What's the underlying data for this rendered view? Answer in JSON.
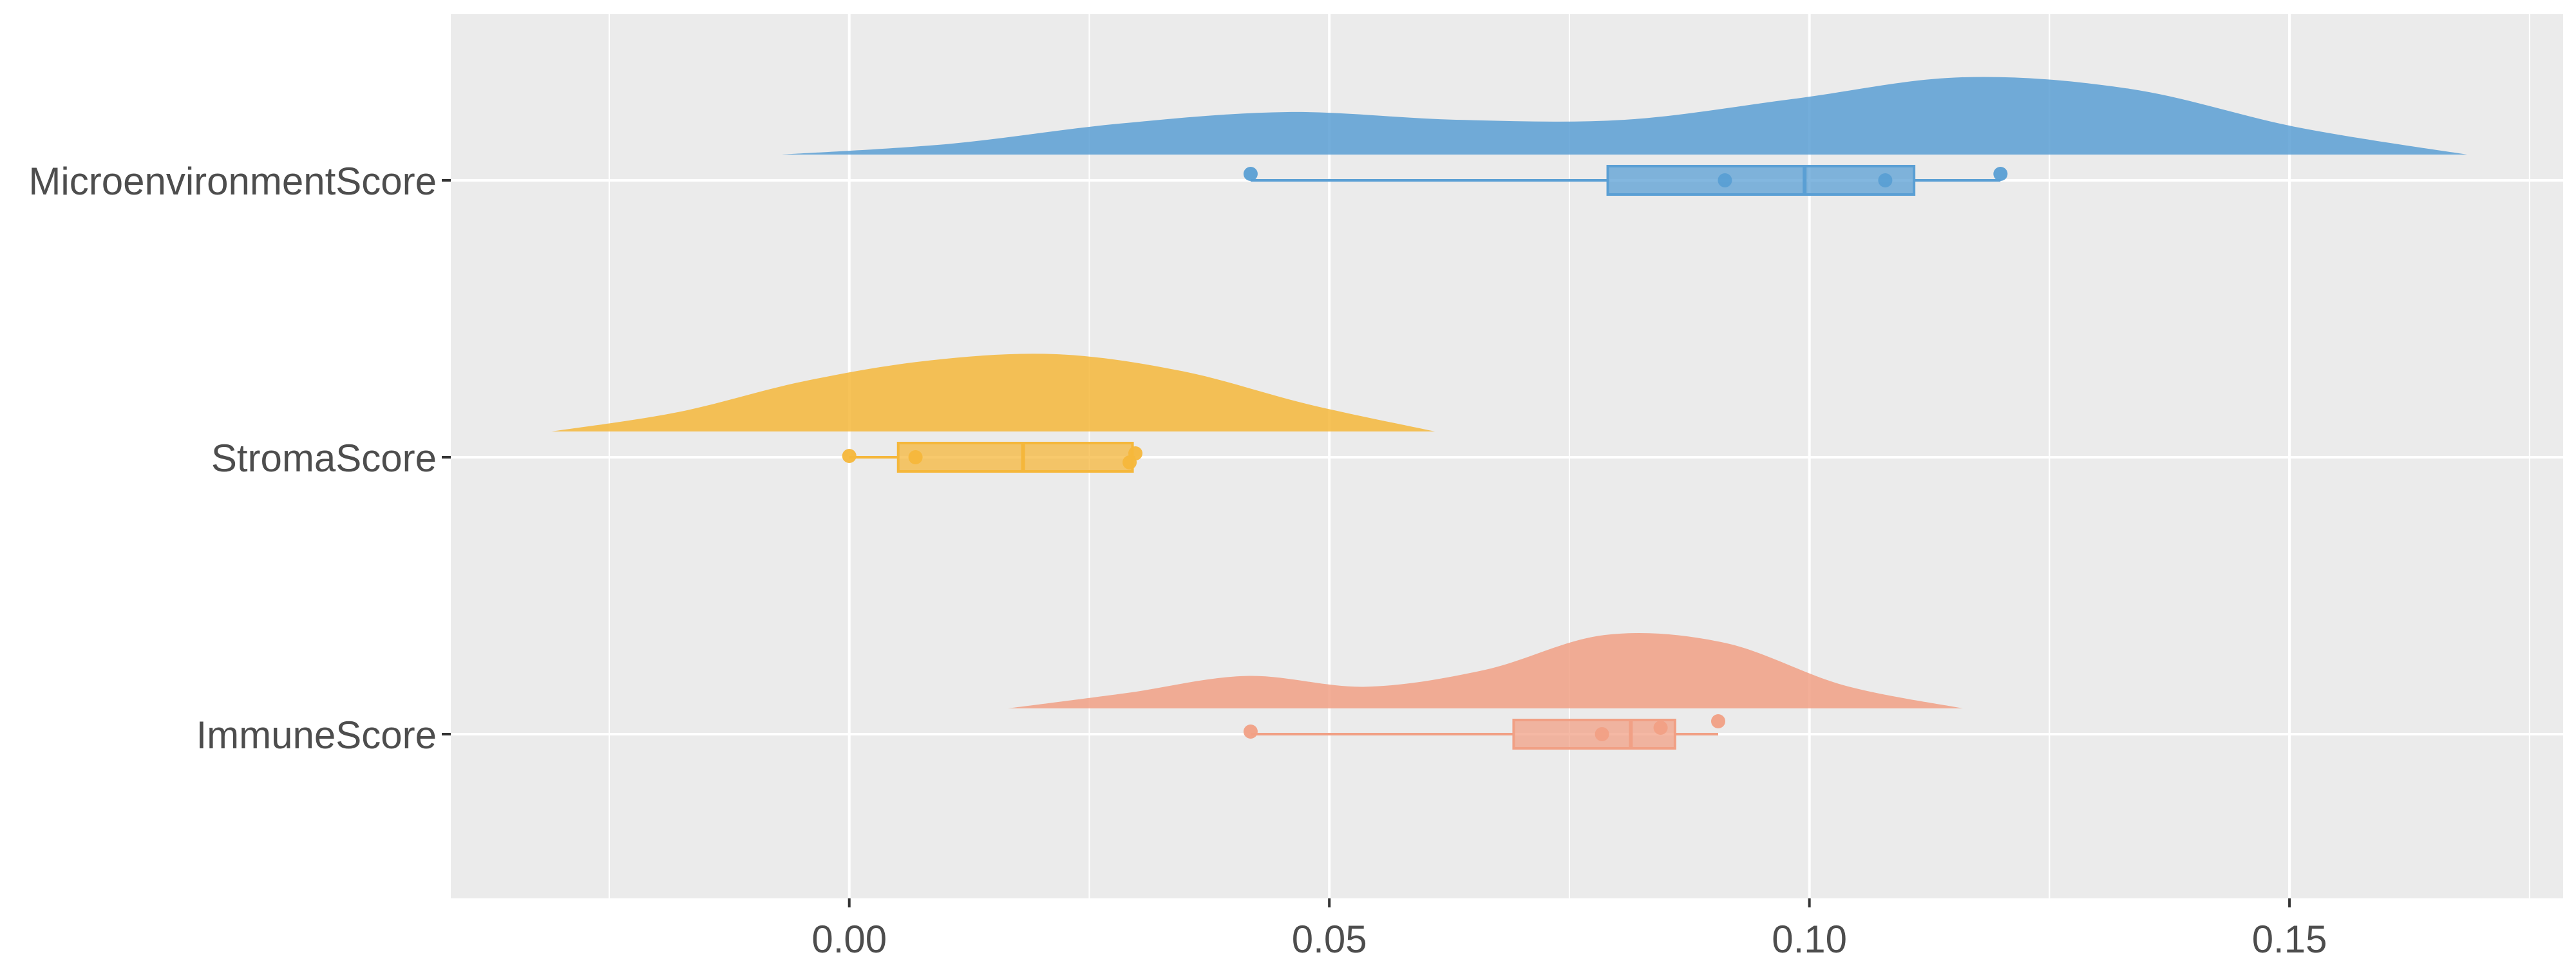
{
  "chart_data": {
    "type": "raincloud",
    "orientation": "horizontal",
    "title": "",
    "xlabel": "",
    "ylabel": "",
    "xlim": [
      -0.0415,
      0.1785
    ],
    "x_ticks": [
      0.0,
      0.05,
      0.1,
      0.15
    ],
    "x_tick_labels": [
      "0.00",
      "0.05",
      "0.10",
      "0.15"
    ],
    "grid": true,
    "legend": "none",
    "categories": [
      "MicroenvironmentScore",
      "StromaScore",
      "ImmuneScore"
    ],
    "series": [
      {
        "category": "MicroenvironmentScore",
        "color": "#5a9fd4",
        "points": [
          0.0418,
          0.0912,
          0.1079,
          0.1199
        ],
        "box": {
          "min": 0.0418,
          "q1": 0.079,
          "median": 0.0995,
          "q3": 0.1109,
          "max": 0.1199
        },
        "density_range": [
          -0.007,
          0.1685
        ],
        "density": [
          0.0,
          0.14,
          0.4,
          0.55,
          0.45,
          0.45,
          0.72,
          1.0,
          0.85,
          0.35,
          0.0
        ]
      },
      {
        "category": "StromaScore",
        "color": "#f5b73b",
        "points": [
          0.0,
          0.0069,
          0.0292,
          0.0298
        ],
        "box": {
          "min": 0.0,
          "q1": 0.0051,
          "median": 0.0181,
          "q3": 0.0295,
          "max": 0.0298
        },
        "density_range": [
          -0.031,
          0.061
        ],
        "density": [
          0.0,
          0.25,
          0.65,
          0.92,
          1.0,
          0.78,
          0.35,
          0.0
        ]
      },
      {
        "category": "ImmuneScore",
        "color": "#f1a085",
        "points": [
          0.0418,
          0.0784,
          0.0845,
          0.0905
        ],
        "box": {
          "min": 0.0418,
          "q1": 0.0692,
          "median": 0.0814,
          "q3": 0.086,
          "max": 0.0905
        },
        "density_range": [
          0.0165,
          0.116
        ],
        "density": [
          0.0,
          0.2,
          0.42,
          0.28,
          0.5,
          0.95,
          0.85,
          0.3,
          0.0
        ]
      }
    ]
  }
}
